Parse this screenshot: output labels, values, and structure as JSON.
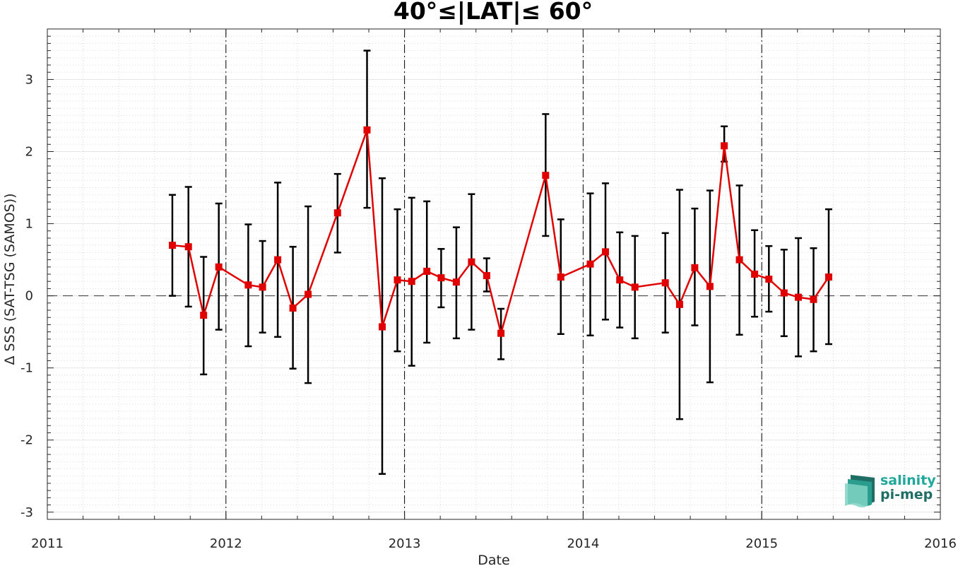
{
  "chart_data": {
    "type": "line",
    "title": "40°≤|LAT|≤ 60°",
    "xlabel": "Date",
    "ylabel": "Δ SSS (SAT-TSG (SAMOS))",
    "xlim": [
      2011,
      2016
    ],
    "ylim": [
      -3.1,
      3.7
    ],
    "xticks": [
      "2011",
      "2012",
      "2013",
      "2014",
      "2015",
      "2016"
    ],
    "yticks": [
      "3",
      "2",
      "1",
      "0",
      "-1",
      "-2",
      "-3"
    ],
    "grid": true,
    "reference_line": 0,
    "year_dividers": [
      2012,
      2013,
      2014,
      2015
    ],
    "colors": {
      "line": "#e00000",
      "marker": "#e00000",
      "errorbar": "#000000"
    },
    "series": [
      {
        "x": [
          2011.7,
          2011.79,
          2011.875,
          2011.96,
          2012.125,
          2012.205,
          2012.29,
          2012.375,
          2012.46,
          2012.625,
          2012.79,
          2012.875,
          2012.96,
          2013.04,
          2013.125,
          2013.205,
          2013.29,
          2013.375,
          2013.46,
          2013.54,
          2013.79,
          2013.875,
          2014.04,
          2014.125,
          2014.205,
          2014.29,
          2014.46,
          2014.54,
          2014.625,
          2014.71,
          2014.79,
          2014.875,
          2014.96,
          2015.04,
          2015.125,
          2015.205,
          2015.29,
          2015.375
        ],
        "y": [
          0.7,
          0.68,
          -0.27,
          0.4,
          0.15,
          0.12,
          0.5,
          -0.17,
          0.02,
          1.15,
          2.3,
          -0.43,
          0.22,
          0.2,
          0.34,
          0.25,
          0.19,
          0.47,
          0.28,
          -0.52,
          1.67,
          0.26,
          0.44,
          0.61,
          0.22,
          0.12,
          0.18,
          -0.12,
          0.39,
          0.13,
          2.08,
          0.5,
          0.3,
          0.23,
          0.04,
          -0.02,
          -0.05,
          0.26
        ],
        "error_low": [
          0.0,
          -0.15,
          -1.09,
          -0.47,
          -0.7,
          -0.51,
          -0.57,
          -1.01,
          -1.21,
          0.6,
          1.22,
          -2.47,
          -0.77,
          -0.97,
          -0.65,
          -0.16,
          -0.59,
          -0.47,
          0.06,
          -0.88,
          0.83,
          -0.53,
          -0.55,
          -0.33,
          -0.44,
          -0.59,
          -0.51,
          -1.71,
          -0.41,
          -1.2,
          1.86,
          -0.54,
          -0.29,
          -0.22,
          -0.56,
          -0.84,
          -0.77,
          -0.67
        ],
        "error_high": [
          1.4,
          1.51,
          0.54,
          1.28,
          0.99,
          0.76,
          1.57,
          0.68,
          1.24,
          1.69,
          3.4,
          1.63,
          1.2,
          1.36,
          1.31,
          0.65,
          0.95,
          1.41,
          0.52,
          -0.18,
          2.52,
          1.06,
          1.42,
          1.56,
          0.88,
          0.83,
          0.87,
          1.47,
          1.21,
          1.46,
          2.35,
          1.53,
          0.91,
          0.69,
          0.64,
          0.8,
          0.66,
          1.2
        ]
      }
    ]
  },
  "logo": {
    "line1": "salinity",
    "line2": "pi-mep",
    "colors": {
      "line1": "#1fa89a",
      "line2": "#1e6e66"
    }
  }
}
